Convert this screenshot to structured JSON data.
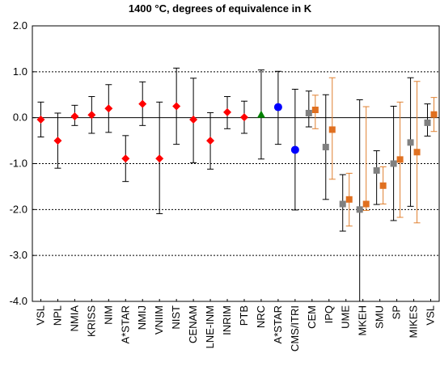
{
  "chart_data": {
    "type": "scatter",
    "title": "1400 °C, degrees of equivalence in K",
    "xlabel": "",
    "ylabel": "",
    "ylim": [
      -4.0,
      2.0
    ],
    "yticks": [
      "2.0",
      "1.0",
      "0.0",
      "-1.0",
      "-2.0",
      "-3.0",
      "-4.0"
    ],
    "ytick_values": [
      2.0,
      1.0,
      0.0,
      -1.0,
      -2.0,
      -3.0,
      -4.0
    ],
    "grid": "horizontal dotted lines at 1.0, -1.0, -2.0, -3.0",
    "categories": [
      "VSL",
      "NPL",
      "NMIA",
      "KRISS",
      "NIM",
      "A*STAR",
      "NMIJ",
      "VNIIM",
      "NIST",
      "CENAM",
      "LNE-INM",
      "INRIM",
      "PTB",
      "NRC",
      "A*STAR",
      "CMS/ITRI",
      "CEM",
      "IPQ",
      "UME",
      "MKEH",
      "SMU",
      "SP",
      "MIKES",
      "VSL"
    ],
    "colors": {
      "red": "#ff0000",
      "green": "#008000",
      "blue": "#0000ff",
      "orange": "#e07020",
      "gray": "#808080",
      "error_black": "#000000",
      "error_orange": "#e08030"
    },
    "series": [
      {
        "marker": "diamond",
        "color": "red",
        "points": [
          {
            "category": 0,
            "y": -0.04,
            "low": -0.42,
            "high": 0.34
          },
          {
            "category": 1,
            "y": -0.5,
            "low": -1.1,
            "high": 0.1
          },
          {
            "category": 2,
            "y": 0.03,
            "low": -0.17,
            "high": 0.27
          },
          {
            "category": 3,
            "y": 0.06,
            "low": -0.34,
            "high": 0.46
          },
          {
            "category": 4,
            "y": 0.2,
            "low": -0.32,
            "high": 0.72
          },
          {
            "category": 5,
            "y": -0.89,
            "low": -1.39,
            "high": -0.39
          },
          {
            "category": 6,
            "y": 0.3,
            "low": -0.17,
            "high": 0.78
          },
          {
            "category": 7,
            "y": -0.89,
            "low": -2.09,
            "high": 0.34
          },
          {
            "category": 8,
            "y": 0.25,
            "low": -0.58,
            "high": 1.08
          },
          {
            "category": 9,
            "y": -0.04,
            "low": -0.98,
            "high": 0.86
          },
          {
            "category": 10,
            "y": -0.5,
            "low": -1.12,
            "high": 0.11
          },
          {
            "category": 11,
            "y": 0.12,
            "low": -0.24,
            "high": 0.46
          },
          {
            "category": 12,
            "y": 0.01,
            "low": -0.34,
            "high": 0.36
          }
        ]
      },
      {
        "marker": "triangle",
        "color": "green",
        "points": [
          {
            "category": 13,
            "y": 0.07,
            "low": -0.9,
            "high": 1.04
          }
        ]
      },
      {
        "marker": "circle",
        "color": "blue",
        "points": [
          {
            "category": 14,
            "y": 0.23,
            "low": -0.58,
            "high": 1.01
          },
          {
            "category": 15,
            "y": -0.7,
            "low": -2.01,
            "high": 0.62
          }
        ]
      },
      {
        "marker": "square",
        "color": "orange",
        "error_color": "error_orange",
        "points": [
          {
            "category": 16,
            "y": 0.17,
            "low": -0.24,
            "high": 0.49
          },
          {
            "category": 17,
            "y": -0.26,
            "low": -1.34,
            "high": 0.87
          },
          {
            "category": 18,
            "y": -1.78,
            "low": -2.36,
            "high": -1.21
          },
          {
            "category": 19,
            "y": -1.88,
            "low": -2.02,
            "high": 0.24
          },
          {
            "category": 20,
            "y": -1.48,
            "low": -1.88,
            "high": -1.07
          },
          {
            "category": 21,
            "y": -0.91,
            "low": -2.17,
            "high": 0.34
          },
          {
            "category": 22,
            "y": -0.75,
            "low": -2.29,
            "high": 0.79
          },
          {
            "category": 23,
            "y": 0.07,
            "low": -0.3,
            "high": 0.44
          }
        ]
      },
      {
        "marker": "square",
        "color": "gray",
        "error_color": "error_black",
        "points": [
          {
            "category": 16,
            "y": 0.1,
            "low": -0.2,
            "high": 0.58
          },
          {
            "category": 17,
            "y": -0.64,
            "low": -1.78,
            "high": 0.5
          },
          {
            "category": 18,
            "y": -1.88,
            "low": -2.47,
            "high": -1.24
          },
          {
            "category": 19,
            "y": -2.0,
            "low": -4.0,
            "high": 0.39
          },
          {
            "category": 20,
            "y": -1.15,
            "low": -1.89,
            "high": -0.72
          },
          {
            "category": 21,
            "y": -1.0,
            "low": -2.24,
            "high": 0.25
          },
          {
            "category": 22,
            "y": -0.54,
            "low": -1.93,
            "high": 0.87
          },
          {
            "category": 23,
            "y": -0.11,
            "low": -0.4,
            "high": 0.3
          }
        ]
      }
    ]
  }
}
